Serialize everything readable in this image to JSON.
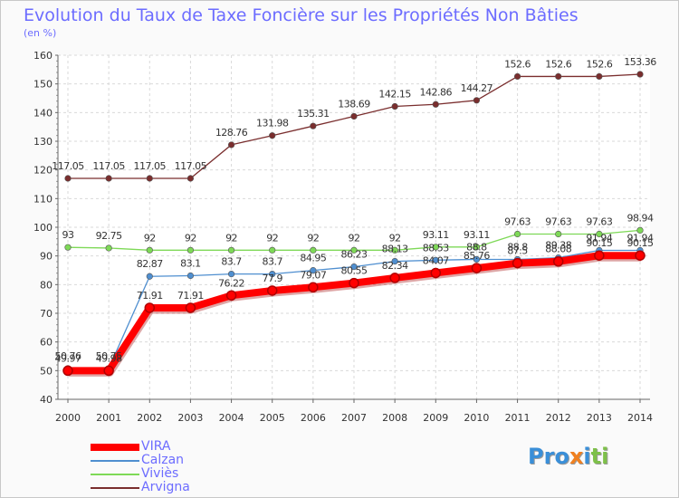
{
  "title": "Evolution du Taux de Taxe Foncière sur les Propriétés Non Bâties",
  "subtitle": "(en %)",
  "logo_text": "Proxiti",
  "logo_colors": [
    "#3a8fd8",
    "#3a8fd8",
    "#3a8fd8",
    "#f08020",
    "#3a8fd8",
    "#3a8fd8",
    "#3a8fd8"
  ],
  "chart_data": {
    "type": "line",
    "title": "Evolution du Taux de Taxe Foncière sur les Propriétés Non Bâties",
    "ylabel": "(en %)",
    "xlabel": "",
    "ylim": [
      40,
      160
    ],
    "yticks": [
      "40",
      "50",
      "60",
      "70",
      "80",
      "90",
      "100",
      "110",
      "120",
      "130",
      "140",
      "150",
      "160"
    ],
    "categories": [
      "2000",
      "2001",
      "2002",
      "2003",
      "2004",
      "2005",
      "2006",
      "2007",
      "2008",
      "2009",
      "2010",
      "2011",
      "2012",
      "2013",
      "2014"
    ],
    "grid": true,
    "series": [
      {
        "name": "VIRA",
        "color": "#ff0000",
        "values": [
          49.97,
          49.98,
          71.91,
          71.91,
          76.22,
          77.9,
          79.07,
          80.55,
          82.34,
          84.07,
          85.76,
          87.5,
          88.08,
          90.15,
          90.15
        ],
        "labels": [
          "49.97",
          "49.98",
          "71.91",
          "71.91",
          "76.22",
          "77.9",
          "79.07",
          "80.55",
          "82.34",
          "84.07",
          "85.76",
          "87.5",
          "88.08",
          "90.15",
          "90.15"
        ]
      },
      {
        "name": "Calzan",
        "color": "#4f8fd0",
        "values": [
          50.76,
          50.75,
          82.87,
          83.1,
          83.7,
          83.7,
          84.95,
          86.23,
          88.13,
          88.53,
          88.8,
          88.8,
          89.38,
          91.94,
          91.94
        ],
        "labels": [
          "50.76",
          "50.75",
          "82.87",
          "83.1",
          "83.7",
          "83.7",
          "84.95",
          "86.23",
          "88.13",
          "88.53",
          "88.8",
          "88.8",
          "89.38",
          "91.94",
          "91.94"
        ]
      },
      {
        "name": "Viviès",
        "color": "#7ed957",
        "values": [
          93,
          92.75,
          92,
          92,
          92,
          92,
          92,
          92,
          92,
          93.11,
          93.11,
          97.63,
          97.63,
          97.63,
          98.94
        ],
        "labels": [
          "93",
          "92.75",
          "92",
          "92",
          "92",
          "92",
          "92",
          "92",
          "92",
          "93.11",
          "93.11",
          "97.63",
          "97.63",
          "97.63",
          "98.94"
        ]
      },
      {
        "name": "Arvigna",
        "color": "#7a2e2e",
        "values": [
          117.05,
          117.05,
          117.05,
          117.05,
          128.76,
          131.98,
          135.31,
          138.69,
          142.15,
          142.86,
          144.27,
          152.6,
          152.6,
          152.6,
          153.36
        ],
        "labels": [
          "117.05",
          "117.05",
          "117.05",
          "117.05",
          "128.76",
          "131.98",
          "135.31",
          "138.69",
          "142.15",
          "142.86",
          "144.27",
          "152.6",
          "152.6",
          "152.6",
          "153.36"
        ]
      }
    ]
  }
}
